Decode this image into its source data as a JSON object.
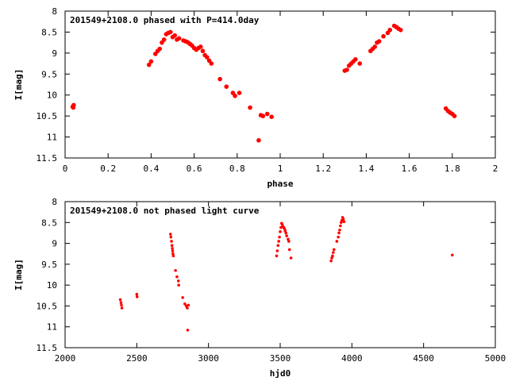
{
  "chart_data": [
    {
      "type": "scatter",
      "title": "201549+2108.0 phased with P=414.0day",
      "xlabel": "phase",
      "ylabel": "I[mag]",
      "xlim": [
        0,
        2
      ],
      "ylim": [
        11.5,
        8
      ],
      "y_inverted": true,
      "xticks": [
        0,
        0.2,
        0.4,
        0.6,
        0.8,
        1,
        1.2,
        1.4,
        1.6,
        1.8,
        2
      ],
      "xtick_labels": [
        "0",
        "0.2",
        "0.4",
        "0.6",
        "0.8",
        "1",
        "1.2",
        "1.4",
        "1.6",
        "1.8",
        "2"
      ],
      "yticks": [
        8,
        8.5,
        9,
        9.5,
        10,
        10.5,
        11,
        11.5
      ],
      "ytick_labels": [
        "8",
        "8.5",
        "9",
        "9.5",
        "10",
        "10.5",
        "11",
        "11.5"
      ],
      "grid": false,
      "marker_color": "#ff0000",
      "points": [
        [
          0.035,
          10.28
        ],
        [
          0.04,
          10.24
        ],
        [
          0.038,
          10.3
        ],
        [
          0.39,
          9.28
        ],
        [
          0.4,
          9.2
        ],
        [
          0.42,
          9.02
        ],
        [
          0.43,
          8.95
        ],
        [
          0.44,
          8.9
        ],
        [
          0.45,
          8.75
        ],
        [
          0.46,
          8.68
        ],
        [
          0.47,
          8.55
        ],
        [
          0.48,
          8.52
        ],
        [
          0.49,
          8.5
        ],
        [
          0.5,
          8.62
        ],
        [
          0.51,
          8.58
        ],
        [
          0.52,
          8.68
        ],
        [
          0.53,
          8.65
        ],
        [
          0.55,
          8.7
        ],
        [
          0.56,
          8.72
        ],
        [
          0.57,
          8.74
        ],
        [
          0.58,
          8.78
        ],
        [
          0.59,
          8.82
        ],
        [
          0.6,
          8.88
        ],
        [
          0.61,
          8.92
        ],
        [
          0.62,
          8.88
        ],
        [
          0.63,
          8.85
        ],
        [
          0.64,
          8.95
        ],
        [
          0.65,
          9.05
        ],
        [
          0.66,
          9.1
        ],
        [
          0.67,
          9.18
        ],
        [
          0.68,
          9.25
        ],
        [
          0.72,
          9.62
        ],
        [
          0.75,
          9.8
        ],
        [
          0.78,
          9.95
        ],
        [
          0.79,
          10.02
        ],
        [
          0.81,
          9.95
        ],
        [
          0.86,
          10.3
        ],
        [
          0.9,
          11.08
        ],
        [
          0.91,
          10.48
        ],
        [
          0.92,
          10.5
        ],
        [
          0.94,
          10.45
        ],
        [
          0.96,
          10.52
        ],
        [
          1.3,
          9.42
        ],
        [
          1.31,
          9.4
        ],
        [
          1.32,
          9.3
        ],
        [
          1.33,
          9.25
        ],
        [
          1.34,
          9.2
        ],
        [
          1.35,
          9.15
        ],
        [
          1.37,
          9.25
        ],
        [
          1.42,
          8.95
        ],
        [
          1.43,
          8.9
        ],
        [
          1.44,
          8.85
        ],
        [
          1.45,
          8.75
        ],
        [
          1.46,
          8.72
        ],
        [
          1.48,
          8.6
        ],
        [
          1.5,
          8.52
        ],
        [
          1.51,
          8.45
        ],
        [
          1.53,
          8.35
        ],
        [
          1.54,
          8.38
        ],
        [
          1.55,
          8.42
        ],
        [
          1.56,
          8.45
        ],
        [
          1.77,
          10.32
        ],
        [
          1.78,
          10.38
        ],
        [
          1.79,
          10.42
        ],
        [
          1.8,
          10.45
        ],
        [
          1.81,
          10.5
        ]
      ]
    },
    {
      "type": "scatter",
      "title": "201549+2108.0 not phased light curve",
      "xlabel": "hjd0",
      "ylabel": "I[mag]",
      "xlim": [
        2000,
        5000
      ],
      "ylim": [
        11.5,
        8
      ],
      "y_inverted": true,
      "xticks": [
        2000,
        2500,
        3000,
        3500,
        4000,
        4500,
        5000
      ],
      "xtick_labels": [
        "2000",
        "2500",
        "3000",
        "3500",
        "4000",
        "4500",
        "5000"
      ],
      "yticks": [
        8,
        8.5,
        9,
        9.5,
        10,
        10.5,
        11,
        11.5
      ],
      "ytick_labels": [
        "8",
        "8.5",
        "9",
        "9.5",
        "10",
        "10.5",
        "11",
        "11.5"
      ],
      "grid": false,
      "marker_color": "#ff0000",
      "points": [
        [
          2385,
          10.35
        ],
        [
          2390,
          10.42
        ],
        [
          2393,
          10.48
        ],
        [
          2396,
          10.55
        ],
        [
          2500,
          10.22
        ],
        [
          2502,
          10.28
        ],
        [
          2735,
          8.78
        ],
        [
          2738,
          8.85
        ],
        [
          2742,
          8.95
        ],
        [
          2745,
          9.05
        ],
        [
          2748,
          9.12
        ],
        [
          2750,
          9.18
        ],
        [
          2752,
          9.25
        ],
        [
          2755,
          9.3
        ],
        [
          2770,
          9.65
        ],
        [
          2780,
          9.8
        ],
        [
          2790,
          9.9
        ],
        [
          2792,
          10.0
        ],
        [
          2820,
          10.3
        ],
        [
          2835,
          10.45
        ],
        [
          2845,
          10.5
        ],
        [
          2852,
          10.55
        ],
        [
          2855,
          11.08
        ],
        [
          2860,
          10.48
        ],
        [
          3475,
          9.3
        ],
        [
          3480,
          9.18
        ],
        [
          3485,
          9.05
        ],
        [
          3490,
          8.95
        ],
        [
          3495,
          8.85
        ],
        [
          3500,
          8.72
        ],
        [
          3505,
          8.62
        ],
        [
          3510,
          8.52
        ],
        [
          3515,
          8.55
        ],
        [
          3520,
          8.6
        ],
        [
          3525,
          8.62
        ],
        [
          3530,
          8.65
        ],
        [
          3535,
          8.7
        ],
        [
          3540,
          8.75
        ],
        [
          3545,
          8.82
        ],
        [
          3555,
          8.9
        ],
        [
          3560,
          8.95
        ],
        [
          3565,
          9.15
        ],
        [
          3575,
          9.35
        ],
        [
          3855,
          9.42
        ],
        [
          3860,
          9.35
        ],
        [
          3865,
          9.3
        ],
        [
          3870,
          9.22
        ],
        [
          3875,
          9.15
        ],
        [
          3895,
          8.95
        ],
        [
          3905,
          8.85
        ],
        [
          3910,
          8.75
        ],
        [
          3915,
          8.68
        ],
        [
          3920,
          8.58
        ],
        [
          3925,
          8.5
        ],
        [
          3930,
          8.45
        ],
        [
          3935,
          8.38
        ],
        [
          3940,
          8.42
        ],
        [
          3945,
          8.48
        ],
        [
          4700,
          9.28
        ]
      ]
    }
  ]
}
